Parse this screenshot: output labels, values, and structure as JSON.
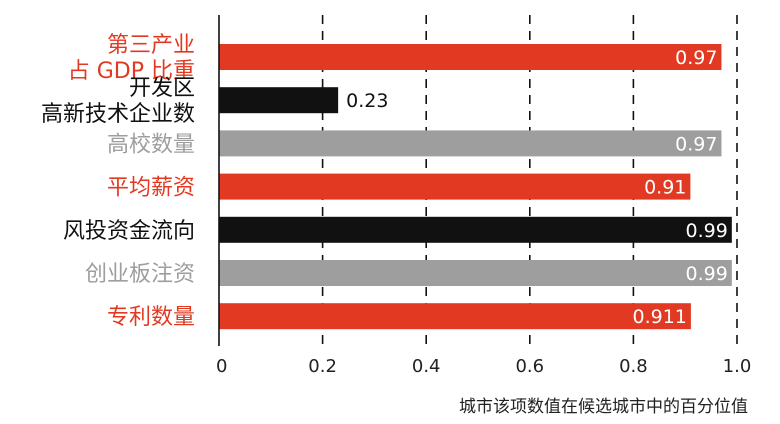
{
  "chart_data": {
    "type": "bar",
    "orientation": "horizontal",
    "categories": [
      {
        "lines": [
          "第三产业",
          "占 GDP 比重"
        ],
        "color": "#e23a22"
      },
      {
        "lines": [
          "开发区",
          "高新技术企业数"
        ],
        "color": "#111111"
      },
      {
        "lines": [
          "高校数量"
        ],
        "color": "#9e9e9e"
      },
      {
        "lines": [
          "平均薪资"
        ],
        "color": "#e23a22"
      },
      {
        "lines": [
          "风投资金流向"
        ],
        "color": "#111111"
      },
      {
        "lines": [
          "创业板注资"
        ],
        "color": "#9e9e9e"
      },
      {
        "lines": [
          "专利数量"
        ],
        "color": "#e23a22"
      }
    ],
    "values": [
      0.97,
      0.23,
      0.97,
      0.91,
      0.99,
      0.99,
      0.911
    ],
    "value_labels": [
      "0.97",
      "0.23",
      "0.97",
      "0.91",
      "0.99",
      "0.99",
      "0.911"
    ],
    "xlim": [
      0,
      1.0
    ],
    "xticks": [
      "0",
      "0.2",
      "0.4",
      "0.6",
      "0.8",
      "1.0"
    ],
    "xlabel": "城市该项数值在候选城市中的百分位值",
    "grid": "vertical dashed",
    "colors": {
      "red": "#e23a22",
      "black": "#111111",
      "gray": "#9e9e9e"
    }
  }
}
